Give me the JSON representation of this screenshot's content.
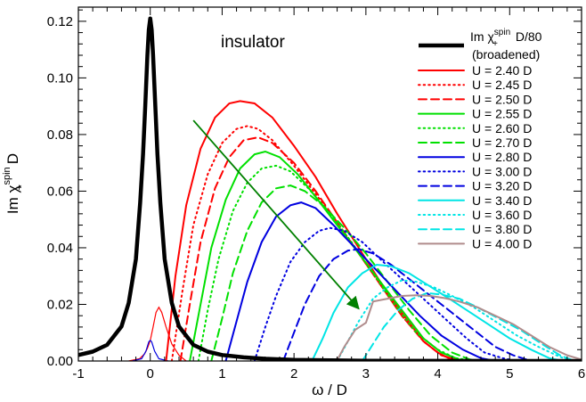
{
  "chart_data": {
    "type": "line",
    "xlabel": "ω / D",
    "ylabel": "Im χ+spin D",
    "ylabel_parts": {
      "pre": "Im χ",
      "sub": "+",
      "sup": "spin",
      "post": " D"
    },
    "xlim": [
      -1,
      6
    ],
    "ylim": [
      0,
      0.125
    ],
    "xticks": [
      "-1",
      "0",
      "1",
      "2",
      "3",
      "4",
      "5",
      "6"
    ],
    "yticks": [
      "0.00",
      "0.02",
      "0.04",
      "0.06",
      "0.08",
      "0.10",
      "0.12"
    ],
    "annotation": "insulator",
    "legend_position": "top-right",
    "legend_broadened": {
      "pre": "Im χ",
      "sub": "+",
      "sup": "spin",
      "post": " D/80",
      "line2": "(broadened)",
      "color": "#000000"
    },
    "arrow": {
      "from": [
        0.6,
        0.085
      ],
      "to": [
        2.9,
        0.0185
      ],
      "color": "#008000"
    },
    "series": [
      {
        "name": "U = 2.40 D",
        "color": "#ff0000",
        "dash": "solid",
        "x": [
          0.22,
          0.35,
          0.5,
          0.7,
          0.9,
          1.1,
          1.25,
          1.45,
          1.7,
          2.0,
          2.3,
          2.6,
          2.9,
          3.2,
          3.5,
          3.8,
          4.0,
          4.15,
          4.3,
          4.45
        ],
        "y": [
          0,
          0.03,
          0.055,
          0.075,
          0.086,
          0.091,
          0.0918,
          0.091,
          0.086,
          0.076,
          0.065,
          0.052,
          0.04,
          0.028,
          0.017,
          0.007,
          0.003,
          0.001,
          0.0003,
          0
        ]
      },
      {
        "name": "U = 2.45 D",
        "color": "#ff0000",
        "dash": "dot",
        "x": [
          0.3,
          0.45,
          0.6,
          0.8,
          1.0,
          1.2,
          1.35,
          1.5,
          1.7,
          2.0,
          2.3,
          2.6,
          2.9,
          3.2,
          3.5,
          3.8,
          4.05,
          4.25,
          4.45
        ],
        "y": [
          0,
          0.025,
          0.048,
          0.066,
          0.077,
          0.082,
          0.083,
          0.082,
          0.078,
          0.069,
          0.059,
          0.049,
          0.038,
          0.027,
          0.016,
          0.007,
          0.002,
          0.0005,
          0
        ]
      },
      {
        "name": "U = 2.50 D",
        "color": "#ff0000",
        "dash": "dash",
        "x": [
          0.42,
          0.55,
          0.7,
          0.9,
          1.1,
          1.3,
          1.5,
          1.7,
          2.0,
          2.3,
          2.6,
          2.9,
          3.2,
          3.5,
          3.8,
          4.05,
          4.25,
          4.45
        ],
        "y": [
          0,
          0.02,
          0.042,
          0.061,
          0.072,
          0.078,
          0.079,
          0.077,
          0.07,
          0.06,
          0.049,
          0.038,
          0.027,
          0.016,
          0.007,
          0.002,
          0.0005,
          0
        ]
      },
      {
        "name": "U = 2.55 D",
        "color": "#00e000",
        "dash": "solid",
        "x": [
          0.55,
          0.7,
          0.85,
          1.05,
          1.25,
          1.45,
          1.6,
          1.8,
          2.05,
          2.3,
          2.6,
          2.9,
          3.2,
          3.5,
          3.8,
          4.05,
          4.3,
          4.5
        ],
        "y": [
          0,
          0.02,
          0.04,
          0.057,
          0.068,
          0.073,
          0.074,
          0.072,
          0.066,
          0.058,
          0.048,
          0.038,
          0.028,
          0.018,
          0.008,
          0.003,
          0.0005,
          0
        ]
      },
      {
        "name": "U = 2.60 D",
        "color": "#00e000",
        "dash": "dot",
        "x": [
          0.67,
          0.8,
          0.95,
          1.15,
          1.35,
          1.55,
          1.75,
          1.95,
          2.2,
          2.5,
          2.8,
          3.1,
          3.4,
          3.7,
          4.0,
          4.25,
          4.5
        ],
        "y": [
          0,
          0.018,
          0.036,
          0.053,
          0.063,
          0.068,
          0.069,
          0.067,
          0.061,
          0.052,
          0.042,
          0.031,
          0.02,
          0.01,
          0.004,
          0.001,
          0
        ]
      },
      {
        "name": "U = 2.70 D",
        "color": "#00e000",
        "dash": "dash",
        "x": [
          0.85,
          1.0,
          1.15,
          1.35,
          1.55,
          1.75,
          1.95,
          2.15,
          2.4,
          2.7,
          3.0,
          3.3,
          3.6,
          3.9,
          4.2,
          4.45,
          4.6
        ],
        "y": [
          0,
          0.015,
          0.031,
          0.046,
          0.056,
          0.061,
          0.062,
          0.06,
          0.055,
          0.047,
          0.038,
          0.028,
          0.018,
          0.009,
          0.003,
          0.0005,
          0
        ]
      },
      {
        "name": "U = 2.80 D",
        "color": "#0000e0",
        "dash": "solid",
        "x": [
          1.05,
          1.2,
          1.35,
          1.55,
          1.75,
          1.95,
          2.1,
          2.3,
          2.55,
          2.85,
          3.15,
          3.45,
          3.75,
          4.05,
          4.35,
          4.6,
          4.8
        ],
        "y": [
          0,
          0.014,
          0.028,
          0.042,
          0.051,
          0.055,
          0.056,
          0.054,
          0.048,
          0.04,
          0.032,
          0.024,
          0.016,
          0.009,
          0.004,
          0.001,
          0
        ]
      },
      {
        "name": "U = 3.00 D",
        "color": "#0000e0",
        "dash": "dot",
        "x": [
          1.45,
          1.6,
          1.75,
          1.95,
          2.15,
          2.35,
          2.5,
          2.7,
          2.95,
          3.2,
          3.5,
          3.8,
          4.1,
          4.4,
          4.65,
          4.9,
          5.1
        ],
        "y": [
          0,
          0.012,
          0.023,
          0.035,
          0.042,
          0.046,
          0.047,
          0.046,
          0.042,
          0.036,
          0.029,
          0.022,
          0.015,
          0.008,
          0.003,
          0.001,
          0
        ]
      },
      {
        "name": "U = 3.20 D",
        "color": "#0000e0",
        "dash": "dash",
        "x": [
          1.85,
          2.0,
          2.15,
          2.35,
          2.55,
          2.75,
          2.9,
          3.1,
          3.35,
          3.6,
          3.9,
          4.2,
          4.5,
          4.8,
          5.05,
          5.3
        ],
        "y": [
          0,
          0.01,
          0.02,
          0.03,
          0.036,
          0.039,
          0.0395,
          0.038,
          0.034,
          0.029,
          0.023,
          0.017,
          0.011,
          0.005,
          0.002,
          0
        ]
      },
      {
        "name": "U = 3.40 D",
        "color": "#00e5e5",
        "dash": "solid",
        "x": [
          2.25,
          2.4,
          2.55,
          2.75,
          2.95,
          3.15,
          3.35,
          3.6,
          3.85,
          4.1,
          4.4,
          4.7,
          5.0,
          5.3,
          5.55,
          5.75
        ],
        "y": [
          0,
          0.008,
          0.017,
          0.026,
          0.031,
          0.034,
          0.0335,
          0.031,
          0.027,
          0.023,
          0.018,
          0.013,
          0.008,
          0.004,
          0.001,
          0
        ]
      },
      {
        "name": "U = 3.60 D",
        "color": "#00e5e5",
        "dash": "dot",
        "x": [
          2.6,
          2.75,
          2.9,
          3.1,
          3.3,
          3.5,
          3.7,
          3.95,
          4.2,
          4.5,
          4.8,
          5.1,
          5.4,
          5.65,
          5.85
        ],
        "y": [
          0,
          0.007,
          0.014,
          0.022,
          0.026,
          0.0285,
          0.028,
          0.026,
          0.023,
          0.019,
          0.014,
          0.009,
          0.005,
          0.002,
          0
        ]
      },
      {
        "name": "U = 3.80 D",
        "color": "#00e5e5",
        "dash": "dash",
        "x": [
          2.95,
          3.1,
          3.25,
          3.45,
          3.65,
          3.85,
          4.05,
          4.3,
          4.55,
          4.85,
          5.15,
          5.45,
          5.7,
          5.9
        ],
        "y": [
          0,
          0.006,
          0.012,
          0.018,
          0.022,
          0.024,
          0.0235,
          0.022,
          0.019,
          0.015,
          0.011,
          0.006,
          0.002,
          0
        ]
      },
      {
        "name": "U = 4.00 D",
        "color": "#b08c8c",
        "dash": "solid",
        "x": [
          2.55,
          2.62,
          2.7,
          2.85,
          3.0,
          3.1,
          3.3,
          3.5,
          3.7,
          3.9,
          4.1,
          4.3,
          4.55,
          4.8,
          5.05,
          5.3,
          5.55,
          5.8,
          6.0
        ],
        "y": [
          0,
          0.0012,
          0.005,
          0.011,
          0.0135,
          0.021,
          0.022,
          0.023,
          0.0232,
          0.023,
          0.0222,
          0.021,
          0.019,
          0.016,
          0.013,
          0.009,
          0.005,
          0.002,
          0.0005
        ]
      }
    ],
    "broadened_curve": {
      "x": [
        -1,
        -0.8,
        -0.6,
        -0.4,
        -0.3,
        -0.2,
        -0.14,
        -0.1,
        -0.07,
        -0.04,
        -0.02,
        0,
        0.02,
        0.04,
        0.07,
        0.1,
        0.14,
        0.2,
        0.3,
        0.4,
        0.6,
        0.8,
        1.0,
        1.3,
        1.6,
        2.0,
        3.0,
        6.0
      ],
      "y": [
        0.0021,
        0.0033,
        0.0057,
        0.0122,
        0.0205,
        0.036,
        0.056,
        0.073,
        0.09,
        0.108,
        0.117,
        0.121,
        0.117,
        0.108,
        0.09,
        0.073,
        0.056,
        0.036,
        0.0205,
        0.0122,
        0.0057,
        0.0033,
        0.0021,
        0.0013,
        0.0008,
        0.0004,
        0.0001,
        0
      ]
    },
    "small_peaks": [
      {
        "color": "#ff0000",
        "x": [
          -0.3,
          -0.15,
          -0.08,
          -0.04,
          0,
          0.04,
          0.08,
          0.12,
          0.16,
          0.22,
          0.3,
          0.4,
          0.5
        ],
        "y": [
          0,
          0.0008,
          0.0025,
          0.0045,
          0.0072,
          0.012,
          0.0172,
          0.019,
          0.0172,
          0.012,
          0.006,
          0.002,
          0
        ]
      },
      {
        "color": "#0000e0",
        "x": [
          -0.25,
          -0.12,
          -0.06,
          -0.02,
          0,
          0.02,
          0.06,
          0.12,
          0.25
        ],
        "y": [
          0,
          0.0008,
          0.0035,
          0.0068,
          0.0073,
          0.0068,
          0.0035,
          0.0008,
          0
        ]
      }
    ]
  }
}
